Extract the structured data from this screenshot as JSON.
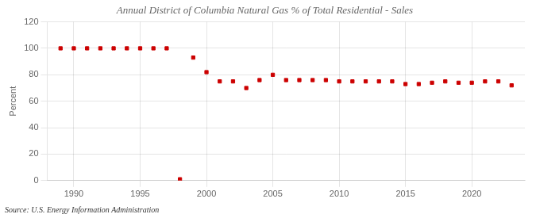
{
  "chart_data": {
    "type": "scatter",
    "title": "Annual District of Columbia Natural Gas % of Total Residential - Sales",
    "ylabel": "Percent",
    "annotation": "Source: U.S. Energy Information Administration",
    "x": [
      1989,
      1990,
      1991,
      1992,
      1993,
      1994,
      1995,
      1996,
      1997,
      1998,
      1999,
      2000,
      2001,
      2002,
      2003,
      2004,
      2005,
      2006,
      2007,
      2008,
      2009,
      2010,
      2011,
      2012,
      2013,
      2014,
      2015,
      2016,
      2017,
      2018,
      2019,
      2020,
      2021,
      2022,
      2023
    ],
    "values": [
      100,
      100,
      100,
      100,
      100,
      100,
      100,
      100,
      100,
      1,
      93,
      82,
      75,
      75,
      70,
      76,
      80,
      76,
      76,
      76,
      76,
      75,
      75,
      75,
      75,
      75,
      73,
      73,
      74,
      75,
      74,
      74,
      75,
      75,
      72
    ],
    "color": "#cc0000",
    "marker": "square",
    "xlim": [
      1988,
      2024
    ],
    "ylim": [
      0,
      120
    ],
    "xticks": [
      1990,
      1995,
      2000,
      2005,
      2010,
      2015,
      2020
    ],
    "yticks": [
      0,
      20,
      40,
      60,
      80,
      100,
      120
    ],
    "grid": true
  }
}
